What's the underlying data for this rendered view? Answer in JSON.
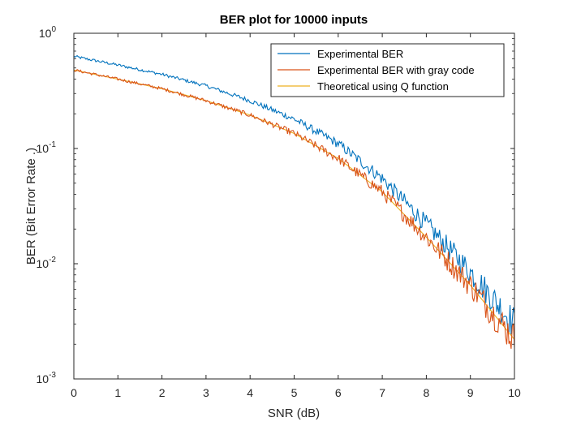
{
  "chart_data": {
    "type": "line",
    "title": "BER plot for 10000 inputs",
    "xlabel": "SNR (dB)",
    "ylabel": "BER (Bit Error Rate .)",
    "xlim": [
      0,
      10
    ],
    "ylim": [
      0.001,
      1
    ],
    "yscale": "log",
    "grid": false,
    "legend_position": "top-right",
    "x_ticks": [
      "0",
      "1",
      "2",
      "3",
      "4",
      "5",
      "6",
      "7",
      "8",
      "9",
      "10"
    ],
    "y_ticks": [
      {
        "base": "10",
        "exp": "0"
      },
      {
        "base": "10",
        "exp": "-1"
      },
      {
        "base": "10",
        "exp": "-2"
      },
      {
        "base": "10",
        "exp": "-3"
      }
    ],
    "x": [
      0,
      1,
      2,
      3,
      4,
      5,
      6,
      7,
      8,
      9,
      10
    ],
    "series": [
      {
        "name": "Experimental BER",
        "color": "#0072bd",
        "values": [
          0.63,
          0.53,
          0.44,
          0.35,
          0.26,
          0.18,
          0.11,
          0.055,
          0.022,
          0.0085,
          0.003
        ]
      },
      {
        "name": "Experimental BER with gray code",
        "color": "#d95319",
        "values": [
          0.48,
          0.4,
          0.33,
          0.26,
          0.195,
          0.135,
          0.082,
          0.042,
          0.017,
          0.0065,
          0.0022
        ]
      },
      {
        "name": "Theoretical using Q function",
        "color": "#edb120",
        "values": [
          0.48,
          0.4,
          0.33,
          0.26,
          0.195,
          0.135,
          0.082,
          0.042,
          0.017,
          0.0065,
          0.0022
        ]
      }
    ]
  }
}
